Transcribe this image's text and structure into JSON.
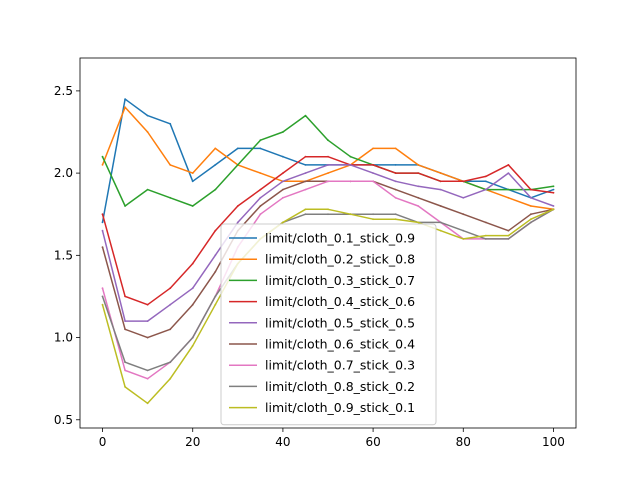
{
  "chart_data": {
    "type": "line",
    "title": "",
    "xlabel": "",
    "ylabel": "",
    "xlim": [
      -5,
      105
    ],
    "ylim": [
      0.45,
      2.7
    ],
    "x_ticks": [
      0,
      20,
      40,
      60,
      80,
      100
    ],
    "y_ticks": [
      0.5,
      1.0,
      1.5,
      2.0,
      2.5
    ],
    "x_tick_labels": [
      "0",
      "20",
      "40",
      "60",
      "80",
      "100"
    ],
    "y_tick_labels": [
      "0.5",
      "1.0",
      "1.5",
      "2.0",
      "2.5"
    ],
    "grid": false,
    "legend_position": "lower-center",
    "x": [
      0,
      5,
      10,
      15,
      20,
      25,
      30,
      35,
      40,
      45,
      50,
      55,
      60,
      65,
      70,
      75,
      80,
      85,
      90,
      95,
      100
    ],
    "series": [
      {
        "name": "limit/cloth_0.1_stick_0.9",
        "color": "#1f77b4",
        "values": [
          1.7,
          2.45,
          2.35,
          2.3,
          1.95,
          2.05,
          2.15,
          2.15,
          2.1,
          2.05,
          2.05,
          2.05,
          2.05,
          2.05,
          2.05,
          2.0,
          1.95,
          1.95,
          1.9,
          1.85,
          1.9
        ]
      },
      {
        "name": "limit/cloth_0.2_stick_0.8",
        "color": "#ff7f0e",
        "values": [
          2.05,
          2.4,
          2.25,
          2.05,
          2.0,
          2.15,
          2.05,
          2.0,
          1.95,
          1.95,
          2.0,
          2.05,
          2.15,
          2.15,
          2.05,
          2.0,
          1.95,
          1.9,
          1.85,
          1.8,
          1.78
        ]
      },
      {
        "name": "limit/cloth_0.3_stick_0.7",
        "color": "#2ca02c",
        "values": [
          2.1,
          1.8,
          1.9,
          1.85,
          1.8,
          1.9,
          2.05,
          2.2,
          2.25,
          2.35,
          2.2,
          2.1,
          2.05,
          2.0,
          2.0,
          1.95,
          1.95,
          1.9,
          1.9,
          1.9,
          1.92
        ]
      },
      {
        "name": "limit/cloth_0.4_stick_0.6",
        "color": "#d62728",
        "values": [
          1.75,
          1.25,
          1.2,
          1.3,
          1.45,
          1.65,
          1.8,
          1.9,
          2.0,
          2.1,
          2.1,
          2.05,
          2.05,
          2.0,
          2.0,
          1.95,
          1.95,
          1.98,
          2.05,
          1.9,
          1.88
        ]
      },
      {
        "name": "limit/cloth_0.5_stick_0.5",
        "color": "#9467bd",
        "values": [
          1.65,
          1.1,
          1.1,
          1.2,
          1.3,
          1.5,
          1.7,
          1.85,
          1.95,
          2.0,
          2.05,
          2.05,
          2.0,
          1.95,
          1.92,
          1.9,
          1.85,
          1.9,
          2.0,
          1.85,
          1.8
        ]
      },
      {
        "name": "limit/cloth_0.6_stick_0.4",
        "color": "#8c564b",
        "values": [
          1.55,
          1.05,
          1.0,
          1.05,
          1.2,
          1.4,
          1.65,
          1.8,
          1.9,
          1.95,
          1.95,
          1.95,
          1.95,
          1.9,
          1.85,
          1.8,
          1.75,
          1.7,
          1.65,
          1.75,
          1.78
        ]
      },
      {
        "name": "limit/cloth_0.7_stick_0.3",
        "color": "#e377c2",
        "values": [
          1.3,
          0.8,
          0.75,
          0.85,
          1.0,
          1.25,
          1.55,
          1.75,
          1.85,
          1.9,
          1.95,
          1.95,
          1.95,
          1.85,
          1.8,
          1.7,
          1.6,
          1.6,
          1.6,
          1.7,
          1.78
        ]
      },
      {
        "name": "limit/cloth_0.8_stick_0.2",
        "color": "#7f7f7f",
        "values": [
          1.25,
          0.85,
          0.8,
          0.85,
          1.0,
          1.25,
          1.45,
          1.6,
          1.7,
          1.75,
          1.75,
          1.75,
          1.75,
          1.75,
          1.7,
          1.7,
          1.65,
          1.6,
          1.6,
          1.7,
          1.78
        ]
      },
      {
        "name": "limit/cloth_0.9_stick_0.1",
        "color": "#bcbd22",
        "values": [
          1.2,
          0.7,
          0.6,
          0.75,
          0.95,
          1.2,
          1.45,
          1.6,
          1.7,
          1.78,
          1.78,
          1.75,
          1.72,
          1.72,
          1.7,
          1.65,
          1.6,
          1.62,
          1.62,
          1.72,
          1.78
        ]
      }
    ]
  }
}
